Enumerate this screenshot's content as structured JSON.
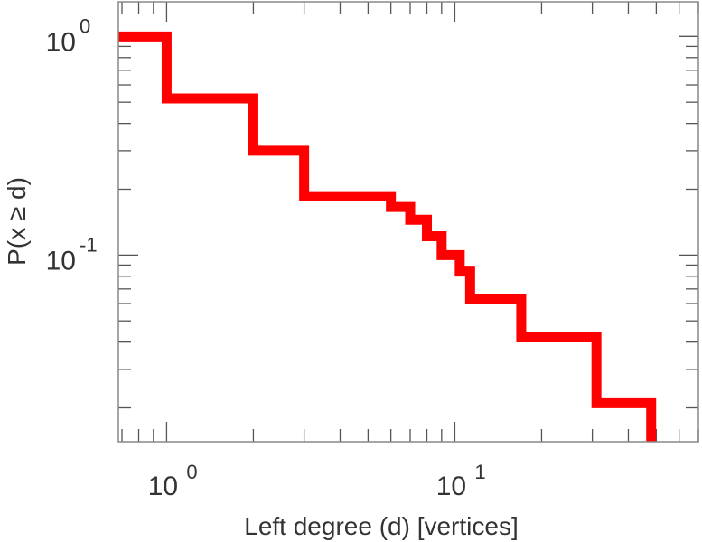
{
  "chart_data": {
    "type": "line",
    "style": "step",
    "title": "",
    "xlabel": "Left degree (d) [vertices]",
    "ylabel": "P(x ≥ d)",
    "xscale": "log",
    "yscale": "log",
    "xlim": [
      0.68,
      70
    ],
    "ylim": [
      0.014,
      1.44
    ],
    "x_ticks": [
      {
        "base": "10",
        "exp": "0",
        "value": 1
      },
      {
        "base": "10",
        "exp": "1",
        "value": 10
      }
    ],
    "y_ticks": [
      {
        "base": "10",
        "exp": "0",
        "value": 1
      },
      {
        "base": "10",
        "exp": "-1",
        "value": 0.1
      }
    ],
    "grid": false,
    "series": [
      {
        "name": "P(x >= d)",
        "color": "#ff0000",
        "steps": [
          {
            "x": 0.68,
            "y": 1.0
          },
          {
            "x": 1,
            "y": 0.52
          },
          {
            "x": 2,
            "y": 0.3
          },
          {
            "x": 3,
            "y": 0.186
          },
          {
            "x": 6,
            "y": 0.166
          },
          {
            "x": 7,
            "y": 0.145
          },
          {
            "x": 8,
            "y": 0.122
          },
          {
            "x": 9,
            "y": 0.1
          },
          {
            "x": 10.4,
            "y": 0.084
          },
          {
            "x": 11.3,
            "y": 0.063
          },
          {
            "x": 17,
            "y": 0.042
          },
          {
            "x": 31,
            "y": 0.021
          },
          {
            "x": 48,
            "y": 0.014
          }
        ]
      }
    ]
  }
}
